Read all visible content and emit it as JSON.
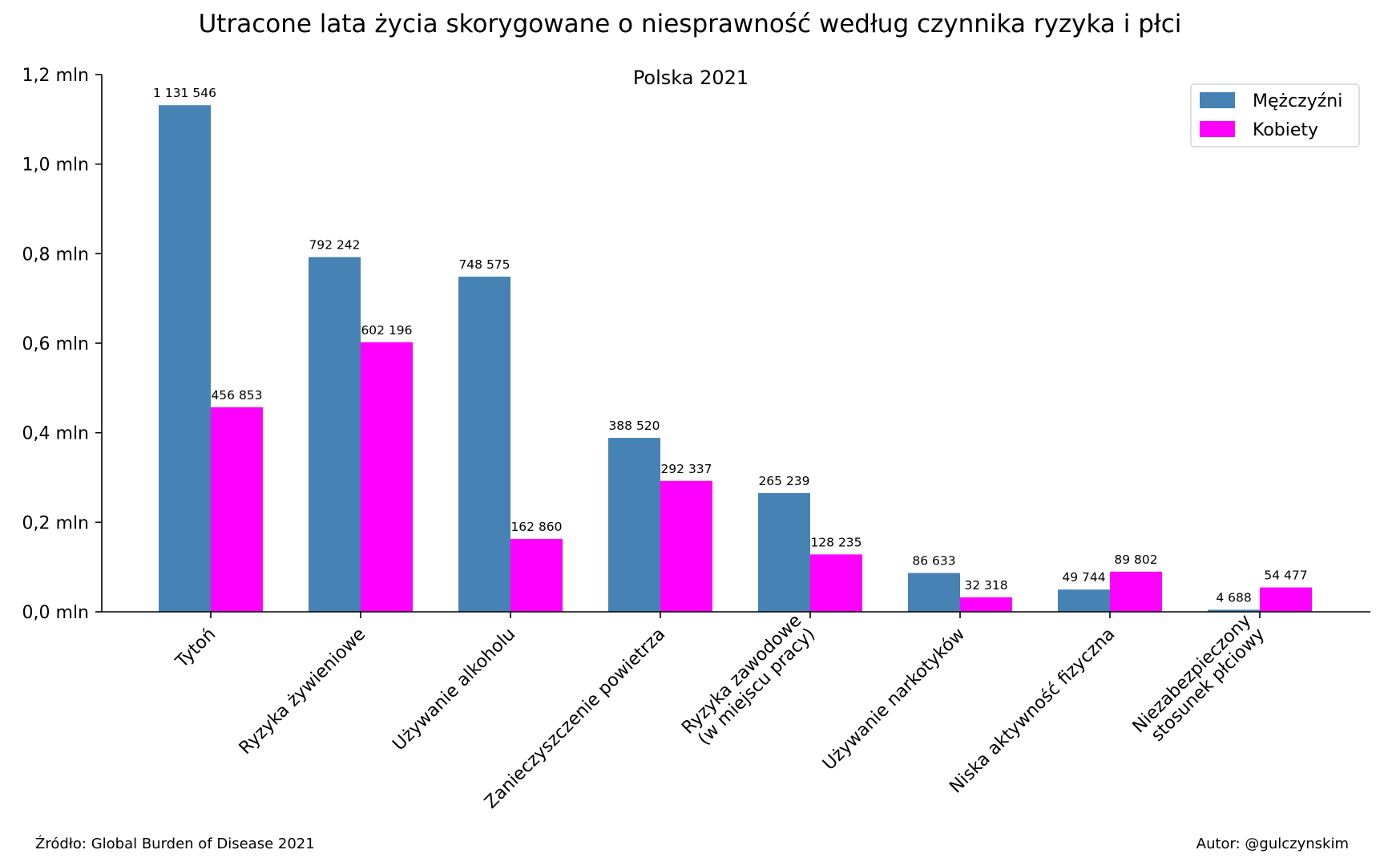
{
  "chart_data": {
    "type": "bar",
    "title": "Utracone lata życia skorygowane o niesprawność według czynnika ryzyka i płci",
    "subtitle": "Polska 2021",
    "xlabel": "",
    "ylabel": "",
    "ylim": [
      0,
      1200000
    ],
    "yticks": [
      {
        "value": 0,
        "label": "0,0 mln"
      },
      {
        "value": 200000,
        "label": "0,2 mln"
      },
      {
        "value": 400000,
        "label": "0,4 mln"
      },
      {
        "value": 600000,
        "label": "0,6 mln"
      },
      {
        "value": 800000,
        "label": "0,8 mln"
      },
      {
        "value": 1000000,
        "label": "1,0 mln"
      },
      {
        "value": 1200000,
        "label": "1,2 mln"
      }
    ],
    "categories": [
      [
        "Tytoń"
      ],
      [
        "Ryzyka żywieniowe"
      ],
      [
        "Używanie alkoholu"
      ],
      [
        "Zanieczyszczenie powietrza"
      ],
      [
        "Ryzyka zawodowe",
        "(w miejscu pracy)"
      ],
      [
        "Używanie narkotyków"
      ],
      [
        "Niska aktywność fizyczna"
      ],
      [
        "Niezabezpieczony",
        "stosunek płciowy"
      ]
    ],
    "series": [
      {
        "name": "Mężczyźni",
        "color": "#4682b4",
        "values": [
          1131546,
          792242,
          748575,
          388520,
          265239,
          86633,
          49744,
          4688
        ],
        "labels": [
          "1 131 546",
          "792 242",
          "748 575",
          "388 520",
          "265 239",
          "86 633",
          "49 744",
          "4 688"
        ]
      },
      {
        "name": "Kobiety",
        "color": "#ff00ff",
        "values": [
          456853,
          602196,
          162860,
          292337,
          128235,
          32318,
          89802,
          54477
        ],
        "labels": [
          "456 853",
          "602 196",
          "162 860",
          "292 337",
          "128 235",
          "32 318",
          "89 802",
          "54 477"
        ]
      }
    ],
    "grid": false,
    "legend_position": "top-right"
  },
  "footer": {
    "source": "Źródło: Global Burden of Disease 2021",
    "author": "Autor: @gulczynskim"
  }
}
